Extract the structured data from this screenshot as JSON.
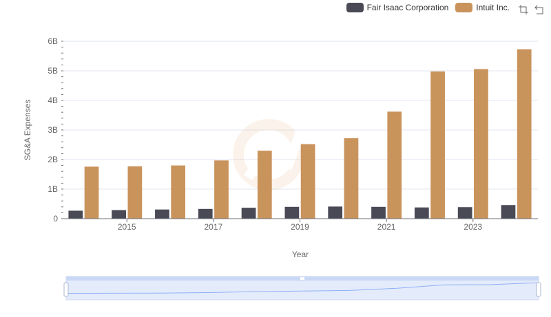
{
  "chart_data": {
    "type": "bar",
    "x": [
      2014,
      2015,
      2016,
      2017,
      2018,
      2019,
      2020,
      2021,
      2022,
      2023,
      2024
    ],
    "x_tick_labels": [
      "2015",
      "2017",
      "2019",
      "2021",
      "2023"
    ],
    "series": [
      {
        "name": "Fair Isaac Corporation",
        "color": "#4a4a56",
        "values": [
          0.27,
          0.29,
          0.31,
          0.33,
          0.37,
          0.4,
          0.41,
          0.4,
          0.38,
          0.39,
          0.46
        ]
      },
      {
        "name": "Intuit Inc.",
        "color": "#c9935c",
        "values": [
          1.76,
          1.77,
          1.8,
          1.97,
          2.3,
          2.52,
          2.72,
          3.62,
          4.98,
          5.06,
          5.73
        ]
      }
    ],
    "y_ticks": [
      "0",
      "1B",
      "2B",
      "3B",
      "4B",
      "5B",
      "6B"
    ],
    "ylim": [
      0,
      6
    ],
    "xlabel": "Year",
    "ylabel": "SG&A Expenses",
    "grid": true,
    "legend_position": "top-right"
  },
  "toolbox": {
    "zoom_icon": "zoom-icon",
    "restore_icon": "restore-icon"
  },
  "datazoom": {
    "start": 0,
    "end": 100
  }
}
